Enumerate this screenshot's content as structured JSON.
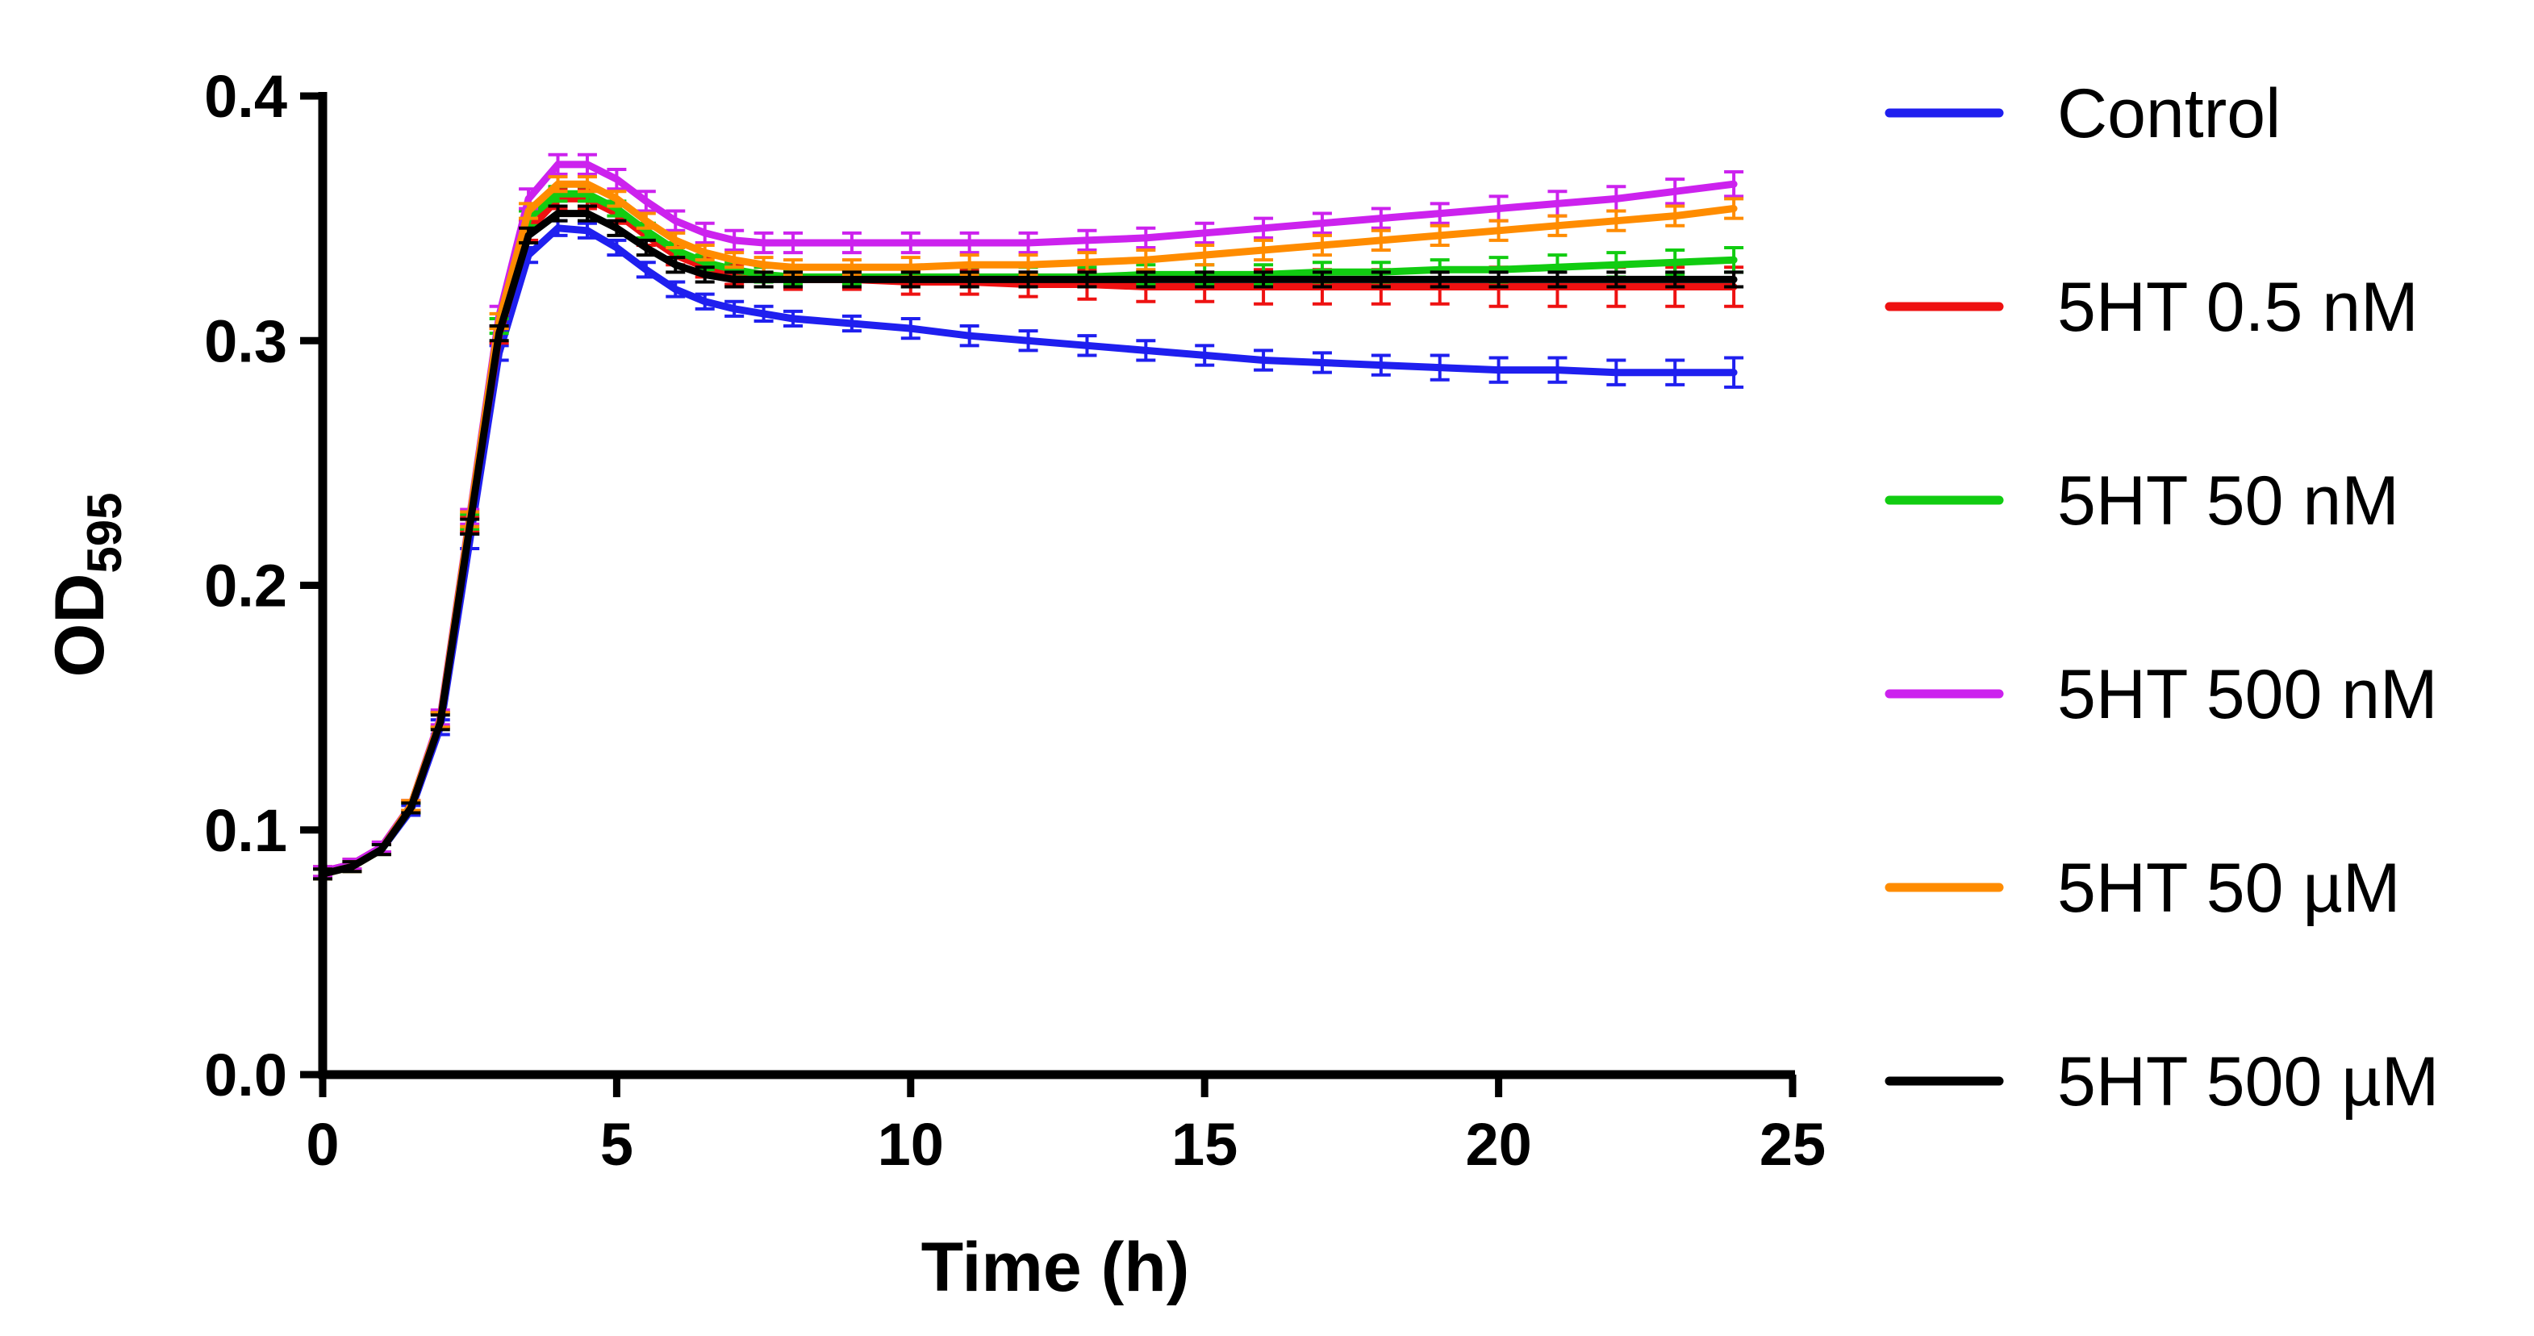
{
  "chart_data": {
    "type": "line",
    "title": "",
    "xlabel": "Time (h)",
    "ylabel_main": "OD",
    "ylabel_sub": "595",
    "xlim": [
      0,
      25
    ],
    "ylim": [
      0.0,
      0.4
    ],
    "xticks": [
      0,
      5,
      10,
      15,
      20,
      25
    ],
    "yticks": [
      0.0,
      0.1,
      0.2,
      0.3,
      0.4
    ],
    "xtick_labels": [
      "0",
      "5",
      "10",
      "15",
      "20",
      "25"
    ],
    "ytick_labels": [
      "0.0",
      "0.1",
      "0.2",
      "0.3",
      "0.4"
    ],
    "grid": false,
    "legend_position": "right",
    "x": [
      0,
      0.5,
      1,
      1.5,
      2,
      2.5,
      3,
      3.5,
      4,
      4.5,
      5,
      5.5,
      6,
      6.5,
      7,
      7.5,
      8,
      9,
      10,
      11,
      12,
      13,
      14,
      15,
      16,
      17,
      18,
      19,
      20,
      21,
      22,
      23,
      24
    ],
    "series": [
      {
        "name": "Control",
        "color": "#1f1fef",
        "values": [
          0.082,
          0.085,
          0.092,
          0.108,
          0.142,
          0.218,
          0.295,
          0.335,
          0.346,
          0.345,
          0.338,
          0.329,
          0.321,
          0.316,
          0.313,
          0.311,
          0.309,
          0.307,
          0.305,
          0.302,
          0.3,
          0.298,
          0.296,
          0.294,
          0.292,
          0.291,
          0.29,
          0.289,
          0.288,
          0.288,
          0.287,
          0.287,
          0.287
        ],
        "errors": [
          0.002,
          0.002,
          0.002,
          0.002,
          0.003,
          0.003,
          0.003,
          0.003,
          0.003,
          0.003,
          0.003,
          0.003,
          0.003,
          0.003,
          0.003,
          0.003,
          0.003,
          0.003,
          0.004,
          0.004,
          0.004,
          0.004,
          0.004,
          0.004,
          0.004,
          0.004,
          0.004,
          0.005,
          0.005,
          0.005,
          0.005,
          0.005,
          0.006
        ]
      },
      {
        "name": "5HT 0.5 nM",
        "color": "#ee1111",
        "values": [
          0.083,
          0.086,
          0.093,
          0.11,
          0.145,
          0.225,
          0.302,
          0.345,
          0.358,
          0.358,
          0.352,
          0.343,
          0.335,
          0.33,
          0.327,
          0.326,
          0.325,
          0.325,
          0.324,
          0.324,
          0.323,
          0.323,
          0.322,
          0.322,
          0.322,
          0.322,
          0.322,
          0.322,
          0.322,
          0.322,
          0.322,
          0.322,
          0.322
        ],
        "errors": [
          0.002,
          0.002,
          0.002,
          0.002,
          0.003,
          0.003,
          0.003,
          0.004,
          0.004,
          0.004,
          0.004,
          0.004,
          0.004,
          0.004,
          0.004,
          0.004,
          0.004,
          0.004,
          0.005,
          0.005,
          0.005,
          0.006,
          0.006,
          0.006,
          0.007,
          0.007,
          0.007,
          0.007,
          0.008,
          0.008,
          0.008,
          0.008,
          0.008
        ]
      },
      {
        "name": "5HT 50 nM",
        "color": "#11cc11",
        "values": [
          0.082,
          0.085,
          0.092,
          0.109,
          0.145,
          0.226,
          0.306,
          0.35,
          0.36,
          0.36,
          0.354,
          0.345,
          0.337,
          0.332,
          0.329,
          0.327,
          0.326,
          0.326,
          0.326,
          0.326,
          0.326,
          0.326,
          0.327,
          0.327,
          0.327,
          0.328,
          0.328,
          0.329,
          0.329,
          0.33,
          0.331,
          0.332,
          0.333
        ],
        "errors": [
          0.002,
          0.002,
          0.002,
          0.002,
          0.003,
          0.003,
          0.003,
          0.003,
          0.003,
          0.003,
          0.003,
          0.003,
          0.003,
          0.003,
          0.003,
          0.003,
          0.003,
          0.003,
          0.004,
          0.004,
          0.004,
          0.004,
          0.004,
          0.004,
          0.004,
          0.004,
          0.004,
          0.004,
          0.005,
          0.005,
          0.005,
          0.005,
          0.005
        ]
      },
      {
        "name": "5HT 500 nM",
        "color": "#cc22ee",
        "values": [
          0.083,
          0.086,
          0.093,
          0.11,
          0.146,
          0.228,
          0.31,
          0.358,
          0.372,
          0.372,
          0.366,
          0.357,
          0.349,
          0.344,
          0.341,
          0.34,
          0.34,
          0.34,
          0.34,
          0.34,
          0.34,
          0.341,
          0.342,
          0.344,
          0.346,
          0.348,
          0.35,
          0.352,
          0.354,
          0.356,
          0.358,
          0.361,
          0.364
        ],
        "errors": [
          0.002,
          0.002,
          0.002,
          0.002,
          0.003,
          0.003,
          0.004,
          0.004,
          0.004,
          0.004,
          0.004,
          0.004,
          0.004,
          0.004,
          0.004,
          0.004,
          0.004,
          0.004,
          0.004,
          0.004,
          0.004,
          0.004,
          0.004,
          0.004,
          0.004,
          0.004,
          0.004,
          0.004,
          0.005,
          0.005,
          0.005,
          0.005,
          0.005
        ]
      },
      {
        "name": "5HT 50 µM",
        "color": "#ff8c00",
        "values": [
          0.082,
          0.085,
          0.092,
          0.11,
          0.145,
          0.227,
          0.308,
          0.353,
          0.364,
          0.364,
          0.358,
          0.349,
          0.341,
          0.336,
          0.333,
          0.331,
          0.33,
          0.33,
          0.33,
          0.331,
          0.331,
          0.332,
          0.333,
          0.335,
          0.337,
          0.339,
          0.341,
          0.343,
          0.345,
          0.347,
          0.349,
          0.351,
          0.354
        ],
        "errors": [
          0.002,
          0.002,
          0.002,
          0.002,
          0.003,
          0.003,
          0.003,
          0.003,
          0.003,
          0.003,
          0.003,
          0.003,
          0.003,
          0.003,
          0.003,
          0.003,
          0.003,
          0.003,
          0.004,
          0.004,
          0.004,
          0.004,
          0.004,
          0.004,
          0.004,
          0.004,
          0.004,
          0.004,
          0.004,
          0.004,
          0.004,
          0.004,
          0.004
        ]
      },
      {
        "name": "5HT 500 µM",
        "color": "#000000",
        "values": [
          0.082,
          0.085,
          0.092,
          0.109,
          0.144,
          0.224,
          0.303,
          0.343,
          0.352,
          0.352,
          0.346,
          0.338,
          0.331,
          0.327,
          0.325,
          0.325,
          0.325,
          0.325,
          0.325,
          0.325,
          0.325,
          0.325,
          0.325,
          0.325,
          0.325,
          0.325,
          0.325,
          0.325,
          0.325,
          0.325,
          0.325,
          0.325,
          0.325
        ],
        "errors": [
          0.002,
          0.002,
          0.002,
          0.002,
          0.003,
          0.003,
          0.003,
          0.003,
          0.003,
          0.003,
          0.003,
          0.003,
          0.003,
          0.003,
          0.003,
          0.003,
          0.003,
          0.003,
          0.003,
          0.003,
          0.003,
          0.003,
          0.003,
          0.003,
          0.003,
          0.003,
          0.003,
          0.003,
          0.003,
          0.003,
          0.003,
          0.003,
          0.003
        ]
      }
    ]
  }
}
